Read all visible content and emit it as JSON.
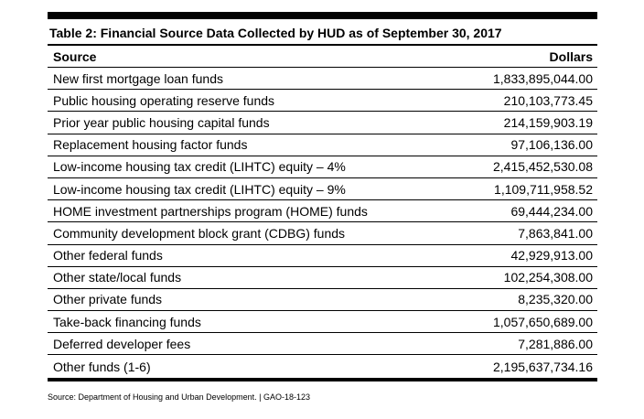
{
  "table": {
    "title": "Table 2: Financial Source Data Collected by HUD as of September 30, 2017",
    "columns": {
      "source": "Source",
      "dollars": "Dollars"
    },
    "rows": [
      {
        "source": "New first mortgage loan funds",
        "dollars": "1,833,895,044.00"
      },
      {
        "source": "Public housing operating reserve funds",
        "dollars": "210,103,773.45"
      },
      {
        "source": "Prior year public housing capital funds",
        "dollars": "214,159,903.19"
      },
      {
        "source": "Replacement housing factor funds",
        "dollars": "97,106,136.00"
      },
      {
        "source": "Low-income housing tax credit (LIHTC) equity – 4%",
        "dollars": "2,415,452,530.08"
      },
      {
        "source": "Low-income housing tax credit (LIHTC) equity – 9%",
        "dollars": "1,109,711,958.52"
      },
      {
        "source": "HOME investment partnerships program (HOME) funds",
        "dollars": "69,444,234.00"
      },
      {
        "source": "Community development block grant (CDBG) funds",
        "dollars": "7,863,841.00"
      },
      {
        "source": "Other federal funds",
        "dollars": "42,929,913.00"
      },
      {
        "source": "Other state/local funds",
        "dollars": "102,254,308.00"
      },
      {
        "source": "Other private funds",
        "dollars": "8,235,320.00"
      },
      {
        "source": "Take-back financing funds",
        "dollars": "1,057,650,689.00"
      },
      {
        "source": "Deferred developer fees",
        "dollars": "7,281,886.00"
      },
      {
        "source": "Other funds (1-6)",
        "dollars": "2,195,637,734.16"
      }
    ]
  },
  "footer": {
    "source_note": "Source: Department of Housing and Urban Development. | GAO-18-123"
  }
}
